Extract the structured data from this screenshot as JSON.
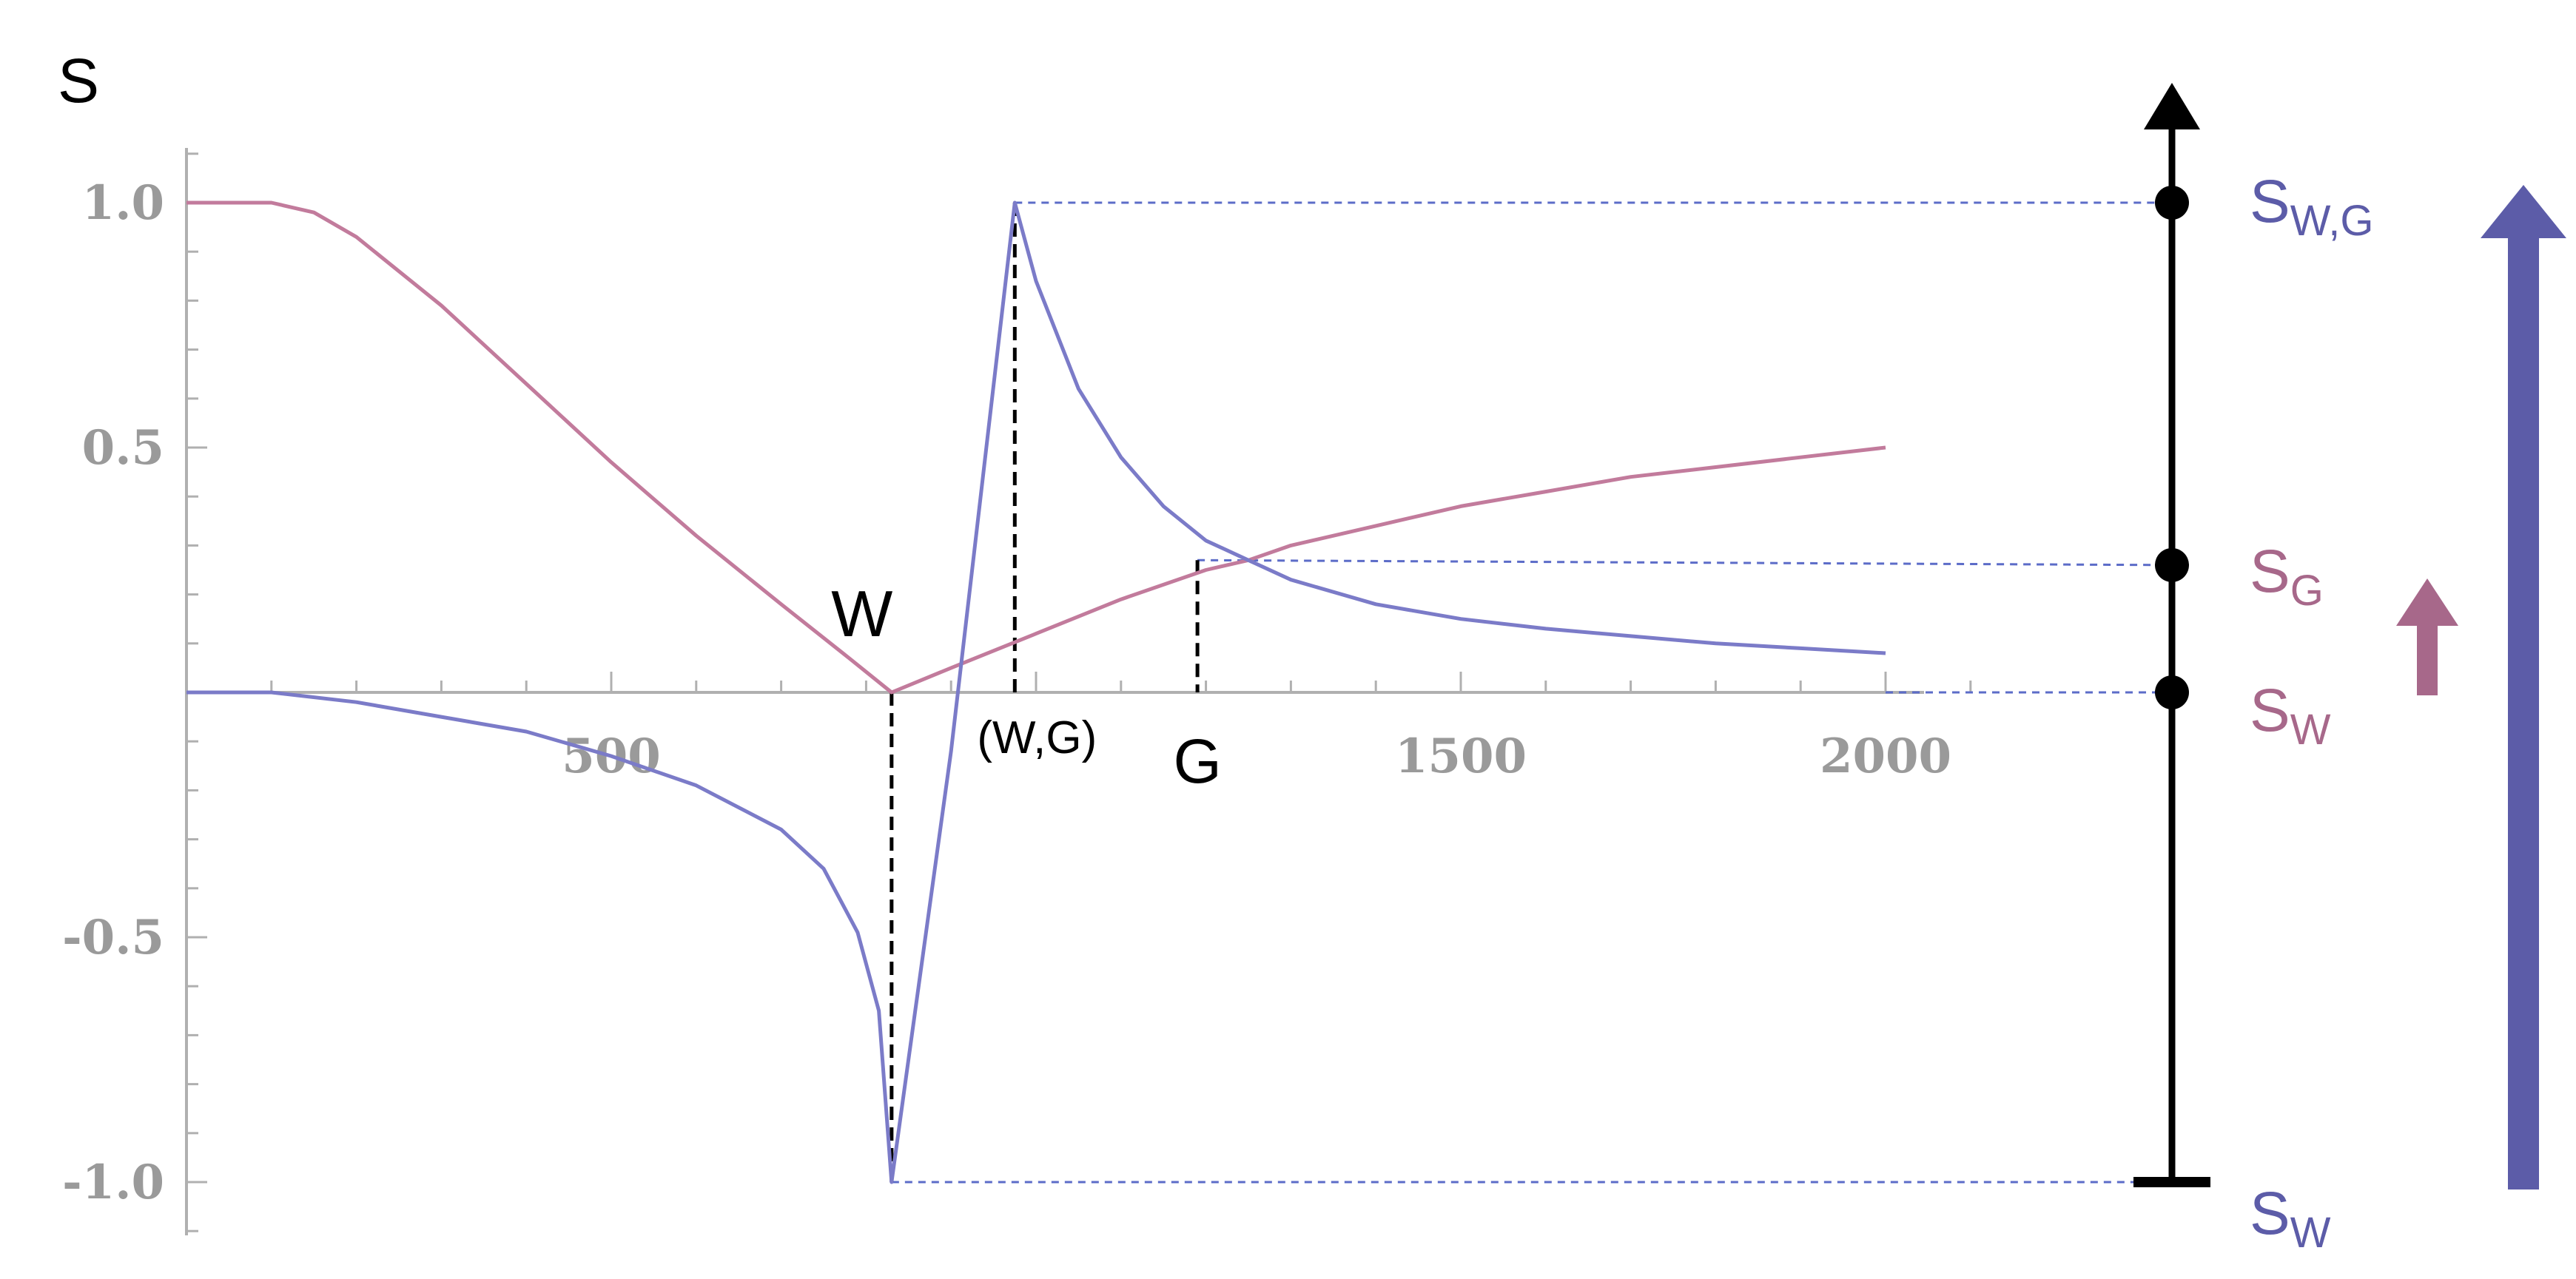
{
  "chart_data": {
    "type": "line",
    "ylabel": "S",
    "xlim": [
      0,
      2000
    ],
    "ylim": [
      -1.0,
      1.0
    ],
    "x_ticks": [
      500,
      1500,
      2000
    ],
    "x_tick_labels": [
      "500",
      "1500",
      "2000"
    ],
    "y_ticks": [
      1.0,
      0.5,
      -0.5,
      -1.0
    ],
    "y_tick_labels": [
      "1.0",
      "0.5",
      "-0.5",
      "-1.0"
    ],
    "grid": false,
    "series": [
      {
        "color": "#c27b9c",
        "x": [
          0,
          100,
          150,
          200,
          300,
          400,
          500,
          600,
          700,
          780,
          830,
          900,
          1000,
          1100,
          1200,
          1250,
          1300,
          1400,
          1500,
          1600,
          1700,
          1800,
          1900,
          2000
        ],
        "y": [
          1.0,
          1.0,
          0.98,
          0.93,
          0.79,
          0.63,
          0.47,
          0.32,
          0.18,
          0.07,
          0.0,
          0.05,
          0.12,
          0.19,
          0.25,
          0.27,
          0.3,
          0.34,
          0.38,
          0.41,
          0.44,
          0.46,
          0.48,
          0.5
        ]
      },
      {
        "color": "#7b7bc8",
        "x": [
          0,
          100,
          200,
          300,
          400,
          500,
          600,
          700,
          750,
          790,
          815,
          830,
          900,
          975,
          1000,
          1050,
          1100,
          1150,
          1200,
          1250,
          1300,
          1400,
          1500,
          1600,
          1700,
          1800,
          1900,
          2000
        ],
        "y": [
          0.0,
          0.0,
          -0.02,
          -0.05,
          -0.08,
          -0.13,
          -0.19,
          -0.28,
          -0.36,
          -0.49,
          -0.65,
          -1.0,
          -0.12,
          1.0,
          0.84,
          0.62,
          0.48,
          0.38,
          0.31,
          0.27,
          0.23,
          0.18,
          0.15,
          0.13,
          0.115,
          0.1,
          0.09,
          0.08
        ]
      }
    ],
    "annotations": [
      {
        "text": "W",
        "x": 830,
        "y": 0.0
      },
      {
        "text": "(W,G)",
        "x": 975,
        "y": 1.0
      },
      {
        "text": "G",
        "x": 1190,
        "y": 0.27
      }
    ],
    "scale": {
      "levels": [
        {
          "main": "S",
          "sub": "W,G",
          "value": 1.0,
          "color": "#5c5ca8"
        },
        {
          "main": "S",
          "sub": "G",
          "value": 0.26,
          "color": "#a7688a"
        },
        {
          "main": "S",
          "sub": "W",
          "value": 0.0,
          "color": "#a7688a"
        },
        {
          "main": "S",
          "sub": "W",
          "value": -1.0,
          "color": "#5c5ca8"
        }
      ],
      "arrows": [
        {
          "color": "#a7688a",
          "from": 0.0,
          "to": 0.26
        },
        {
          "color": "#5c5ca8",
          "from": -1.0,
          "to": 1.0
        }
      ]
    },
    "colors": {
      "axis": "#b0b0b0",
      "tick_text": "#9a9a9a",
      "dashed_blue": "#5c6cc8",
      "dashed_black": "#000000",
      "scale_axis": "#000000"
    }
  }
}
